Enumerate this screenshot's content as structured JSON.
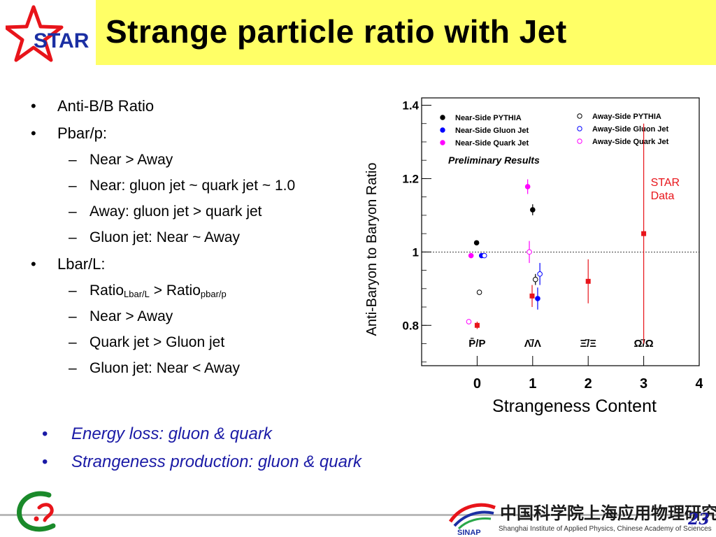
{
  "header": {
    "logo_text": "STAR",
    "title": "Strange particle ratio with Jet"
  },
  "bullets": [
    {
      "text": "Anti-B/B Ratio",
      "children": []
    },
    {
      "text": "Pbar/p:",
      "children": [
        "Near > Away",
        "Near: gluon jet ~ quark jet ~ 1.0",
        "Away: gluon jet > quark jet",
        "Gluon jet: Near ~ Away"
      ]
    },
    {
      "text": "Lbar/L:",
      "children": [
        "Ratio_Lbar/L > Ratio_pbar/p",
        "Near > Away",
        "Quark jet > Gluon jet",
        "Gluon jet: Near < Away"
      ]
    }
  ],
  "ratio_line": {
    "a": "Ratio",
    "a_sub": "Lbar/L",
    "mid": " > ",
    "b": "Ratio",
    "b_sub": "pbar/p"
  },
  "bullet_marker": "•",
  "dash_marker": "–",
  "conclusions": [
    "Energy loss: gluon & quark",
    "Strangeness production: gluon & quark"
  ],
  "chart_data": {
    "type": "scatter",
    "xlabel": "Strangeness Content",
    "ylabel": "Anti-Baryon to Baryon Ratio",
    "xlim": [
      -1,
      4
    ],
    "ylim": [
      0.69,
      1.42
    ],
    "x_ticks": [
      0,
      1,
      2,
      3,
      4
    ],
    "y_ticks": [
      0.8,
      1,
      1.2,
      1.4
    ],
    "y_tick_labels": [
      "0.8",
      "1",
      "1.2",
      "1.4"
    ],
    "reference_line": 1.0,
    "category_labels": [
      {
        "x": 0,
        "label": "P̄/P"
      },
      {
        "x": 1,
        "label": "Λ̄/Λ"
      },
      {
        "x": 2,
        "label": "Ξ̄/Ξ"
      },
      {
        "x": 3,
        "label": "Ω̄/Ω"
      }
    ],
    "annotations": {
      "preliminary": "Preliminary Results",
      "star_data": [
        "STAR",
        "Data"
      ]
    },
    "legend_position": "top",
    "series": [
      {
        "name": "Near-Side PYTHIA",
        "color": "#000000",
        "marker": "circle",
        "filled": true,
        "points": [
          {
            "x": -0.01,
            "y": 1.025,
            "err": 0
          },
          {
            "x": 1.0,
            "y": 1.115,
            "err": 0.015
          }
        ]
      },
      {
        "name": "Near-Side Gluon Jet",
        "color": "#0000ff",
        "marker": "circle",
        "filled": true,
        "points": [
          {
            "x": 0.08,
            "y": 0.99,
            "err": 0
          },
          {
            "x": 1.09,
            "y": 0.873,
            "err": 0.03
          }
        ]
      },
      {
        "name": "Near-Side Quark Jet",
        "color": "#ff00ff",
        "marker": "circle",
        "filled": true,
        "points": [
          {
            "x": -0.11,
            "y": 0.99,
            "err": 0
          },
          {
            "x": 0.91,
            "y": 1.178,
            "err": 0.02
          }
        ]
      },
      {
        "name": "Away-Side PYTHIA",
        "color": "#000000",
        "marker": "circle",
        "filled": false,
        "points": [
          {
            "x": 0.04,
            "y": 0.89,
            "err": 0
          },
          {
            "x": 1.05,
            "y": 0.925,
            "err": 0.015
          }
        ]
      },
      {
        "name": "Away-Side Gluon Jet",
        "color": "#0000ff",
        "marker": "circle",
        "filled": false,
        "points": [
          {
            "x": 0.13,
            "y": 0.99,
            "err": 0
          },
          {
            "x": 1.13,
            "y": 0.94,
            "err": 0.03
          }
        ]
      },
      {
        "name": "Away-Side Quark Jet",
        "color": "#ff00ff",
        "marker": "circle",
        "filled": false,
        "points": [
          {
            "x": -0.15,
            "y": 0.81,
            "err": 0
          },
          {
            "x": 0.94,
            "y": 1.0,
            "err": 0.03
          }
        ]
      },
      {
        "name": "STAR Data",
        "color": "#e8141a",
        "marker": "square",
        "filled": true,
        "points": [
          {
            "x": 0.0,
            "y": 0.8,
            "err": 0.01
          },
          {
            "x": 0.99,
            "y": 0.88,
            "err": 0.03
          },
          {
            "x": 2.0,
            "y": 0.92,
            "err": 0.06
          },
          {
            "x": 3.0,
            "y": 1.05,
            "err": 0.3
          }
        ]
      }
    ]
  },
  "footer": {
    "institute_cn": "中国科学院上海应用物理研究所",
    "institute_en": "Shanghai Institute of Applied Physics, Chinese Academy of Sciences",
    "sinap_label": "SINAP",
    "page_number": "23"
  },
  "colors": {
    "title_bg": "#ffff66",
    "conclusion_text": "#1a1aa6",
    "star_red": "#e8141a",
    "star_blue": "#1b2fa3"
  }
}
